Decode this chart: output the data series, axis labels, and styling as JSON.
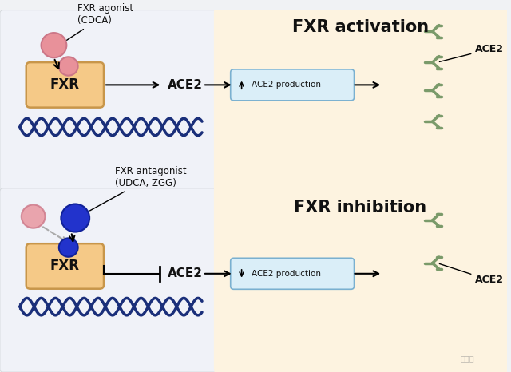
{
  "bg_color": "#f5f5f5",
  "panel_bg": "#e8ecf0",
  "cell_color": "#fdf3e0",
  "fxr_box_color": "#f5c987",
  "fxr_box_edge": "#c8964a",
  "dna_color_top": "#1a2f7a",
  "dna_color_bottom": "#1a2f7a",
  "agonist_color": "#e8919a",
  "antagonist_pink_color": "#e8919a",
  "antagonist_blue_color": "#2233cc",
  "receptor_color_top": "#e8919a",
  "receptor_color_bottom": "#2233cc",
  "ace2_box_color": "#daeef8",
  "ace2_box_edge": "#7ab0d0",
  "antibody_color": "#7a9a6a",
  "title_top": "FXR activation",
  "title_bottom": "FXR inhibition",
  "label_agonist_line1": "FXR agonist",
  "label_agonist_line2": "(CDCA)",
  "label_antagonist_line1": "FXR antagonist",
  "label_antagonist_line2": "(UDCA, ZGG)",
  "label_ace2": "ACE2",
  "label_ace2_right_top": "ACE2",
  "label_ace2_right_bottom": "ACE2",
  "label_production_top": "ACE2 production",
  "label_production_bottom": "ACE2 production",
  "label_fxr": "FXR",
  "watermark": "量子位"
}
